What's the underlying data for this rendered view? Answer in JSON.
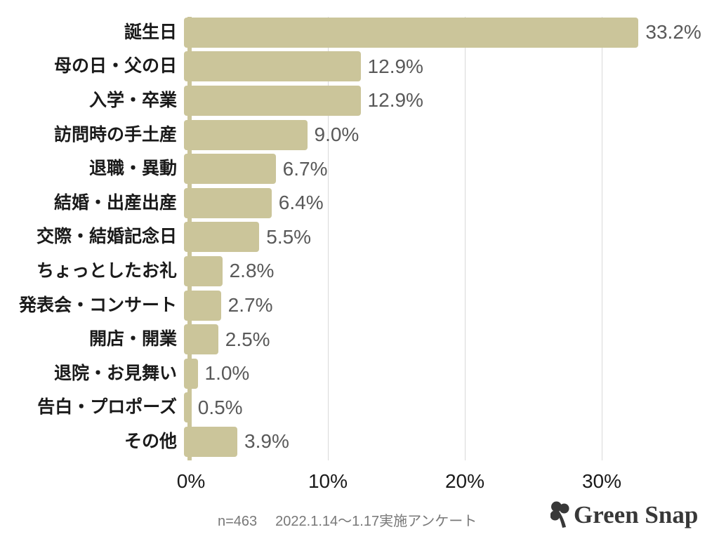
{
  "chart_data": {
    "type": "bar",
    "orientation": "horizontal",
    "title": "",
    "xlabel": "",
    "ylabel": "",
    "categories": [
      "誕生日",
      "母の日・父の日",
      "入学・卒業",
      "訪問時の手土産",
      "退職・異動",
      "結婚・出産出産",
      "交際・結婚記念日",
      "ちょっとしたお礼",
      "発表会・コンサート",
      "開店・開業",
      "退院・お見舞い",
      "告白・プロポーズ",
      "その他"
    ],
    "values": [
      33.2,
      12.9,
      12.9,
      9.0,
      6.7,
      6.4,
      5.5,
      2.8,
      2.7,
      2.5,
      1.0,
      0.5,
      3.9
    ],
    "value_labels": [
      "33.2%",
      "12.9%",
      "12.9%",
      "9.0%",
      "6.7%",
      "6.4%",
      "5.5%",
      "2.8%",
      "2.7%",
      "2.5%",
      "1.0%",
      "0.5%",
      "3.9%"
    ],
    "x_ticks": [
      {
        "label": "0%",
        "value": 0
      },
      {
        "label": "10%",
        "value": 10
      },
      {
        "label": "20%",
        "value": 20
      },
      {
        "label": "30%",
        "value": 30
      }
    ],
    "xlim": [
      0,
      38.5
    ],
    "grid": "vertical-gridlines-at-ticks",
    "legend": "none",
    "bar_color": "#CBC59A"
  },
  "footer": {
    "sample_size": "n=463",
    "survey_note": "2022.1.14〜1.17実施アンケート",
    "logo": {
      "icon": "clover-icon",
      "text": "Green Snap"
    }
  },
  "colors": {
    "bar": "#CBC59A",
    "axis_spine": "#CBC59A",
    "gridline": "#D9D9D9",
    "category_label": "#1A1A1A",
    "value_label": "#595959",
    "tick_label": "#1A1A1A",
    "footer_text": "#787878",
    "logo": "#383838",
    "background": "#FFFFFF"
  }
}
